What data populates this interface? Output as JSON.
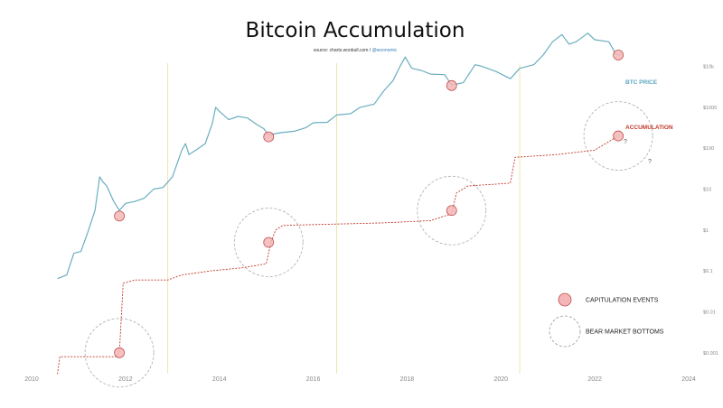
{
  "chart_data": {
    "type": "line",
    "title": "Bitcoin Accumulation",
    "source_prefix": "source: charts.woobull.com /",
    "source_handle": "@woonomic",
    "x_ticks": [
      "2010",
      "2012",
      "2014",
      "2016",
      "2018",
      "2020",
      "2022",
      "2024"
    ],
    "x_range": [
      2010,
      2024
    ],
    "y_scale": "log",
    "y_ticks": [
      "$10k",
      "$1000",
      "$100",
      "$10",
      "$1",
      "$0.1",
      "$0.01",
      "$0.001"
    ],
    "y_range_log10": [
      -3.6,
      4.3
    ],
    "vertical_guides": [
      2012.9,
      2016.5,
      2020.4
    ],
    "series": [
      {
        "name": "BTC PRICE",
        "color": "#6aaec0",
        "points": [
          [
            2010.55,
            0.065
          ],
          [
            2010.75,
            0.08
          ],
          [
            2010.9,
            0.27
          ],
          [
            2011.05,
            0.3
          ],
          [
            2011.2,
            0.9
          ],
          [
            2011.35,
            3
          ],
          [
            2011.45,
            20
          ],
          [
            2011.52,
            15
          ],
          [
            2011.6,
            12
          ],
          [
            2011.75,
            5
          ],
          [
            2011.87,
            3
          ],
          [
            2012.0,
            4.5
          ],
          [
            2012.2,
            5
          ],
          [
            2012.4,
            6
          ],
          [
            2012.6,
            10
          ],
          [
            2012.8,
            11
          ],
          [
            2013.0,
            20
          ],
          [
            2013.2,
            90
          ],
          [
            2013.28,
            130
          ],
          [
            2013.35,
            70
          ],
          [
            2013.5,
            90
          ],
          [
            2013.7,
            130
          ],
          [
            2013.85,
            400
          ],
          [
            2013.92,
            1000
          ],
          [
            2014.0,
            800
          ],
          [
            2014.2,
            500
          ],
          [
            2014.4,
            600
          ],
          [
            2014.6,
            550
          ],
          [
            2014.8,
            380
          ],
          [
            2014.95,
            300
          ],
          [
            2015.05,
            210
          ],
          [
            2015.3,
            240
          ],
          [
            2015.6,
            260
          ],
          [
            2015.85,
            320
          ],
          [
            2016.0,
            420
          ],
          [
            2016.3,
            430
          ],
          [
            2016.5,
            650
          ],
          [
            2016.8,
            700
          ],
          [
            2017.0,
            1000
          ],
          [
            2017.3,
            1200
          ],
          [
            2017.5,
            2500
          ],
          [
            2017.7,
            4500
          ],
          [
            2017.85,
            10000
          ],
          [
            2017.96,
            17000
          ],
          [
            2018.1,
            9000
          ],
          [
            2018.3,
            8000
          ],
          [
            2018.5,
            6500
          ],
          [
            2018.8,
            6300
          ],
          [
            2018.95,
            3500
          ],
          [
            2019.2,
            4000
          ],
          [
            2019.45,
            11000
          ],
          [
            2019.6,
            10000
          ],
          [
            2019.9,
            7500
          ],
          [
            2020.2,
            5000
          ],
          [
            2020.4,
            9000
          ],
          [
            2020.7,
            11000
          ],
          [
            2020.9,
            19000
          ],
          [
            2021.1,
            40000
          ],
          [
            2021.3,
            60000
          ],
          [
            2021.45,
            35000
          ],
          [
            2021.6,
            40000
          ],
          [
            2021.85,
            65000
          ],
          [
            2022.0,
            45000
          ],
          [
            2022.3,
            40000
          ],
          [
            2022.45,
            20000
          ],
          [
            2022.55,
            19000
          ]
        ]
      },
      {
        "name": "ACCUMULATION",
        "color": "#c0392b",
        "points": [
          [
            2010.55,
            0.0003
          ],
          [
            2010.6,
            0.0008
          ],
          [
            2011.8,
            0.0008
          ],
          [
            2011.87,
            0.001
          ],
          [
            2011.95,
            0.05
          ],
          [
            2012.2,
            0.06
          ],
          [
            2012.9,
            0.06
          ],
          [
            2013.2,
            0.08
          ],
          [
            2013.8,
            0.1
          ],
          [
            2014.5,
            0.12
          ],
          [
            2015.0,
            0.15
          ],
          [
            2015.1,
            0.5
          ],
          [
            2015.2,
            1
          ],
          [
            2015.35,
            1.3
          ],
          [
            2016.5,
            1.4
          ],
          [
            2017.5,
            1.5
          ],
          [
            2018.5,
            1.7
          ],
          [
            2018.95,
            2.5
          ],
          [
            2019.05,
            8
          ],
          [
            2019.3,
            12
          ],
          [
            2020.2,
            14
          ],
          [
            2020.3,
            60
          ],
          [
            2021.2,
            70
          ],
          [
            2022.0,
            90
          ],
          [
            2022.5,
            200
          ]
        ]
      }
    ],
    "capitulation_events": [
      [
        2011.87,
        2.2
      ],
      [
        2011.87,
        0.001
      ],
      [
        2015.05,
        190
      ],
      [
        2015.05,
        0.5
      ],
      [
        2018.95,
        3400
      ],
      [
        2018.95,
        3
      ],
      [
        2022.5,
        19000
      ],
      [
        2022.5,
        200
      ]
    ],
    "bear_market_bottoms": [
      [
        2011.87,
        0.001
      ],
      [
        2015.05,
        0.5
      ],
      [
        2018.95,
        3
      ],
      [
        2022.5,
        200
      ]
    ],
    "series_labels": {
      "price": "BTC PRICE",
      "accumulation": "ACCUMULATION"
    },
    "question_marks": [
      "?",
      "?"
    ],
    "legend": {
      "placement": "bottom-right",
      "items": [
        {
          "label": "CAPITULATION EVENTS",
          "marker": "filled-circle"
        },
        {
          "label": "BEAR MARKET BOTTOMS",
          "marker": "dashed-circle"
        }
      ]
    },
    "grid": false
  }
}
